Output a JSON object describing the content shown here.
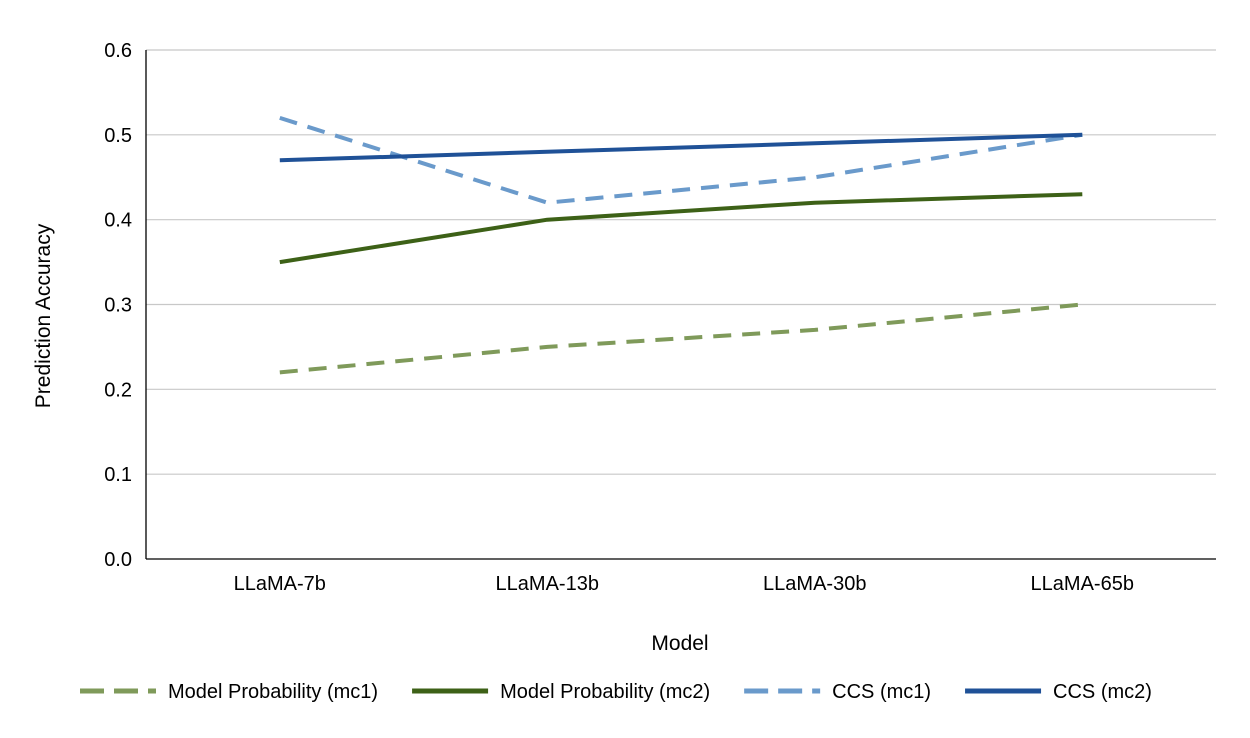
{
  "chart_data": {
    "type": "line",
    "title": "",
    "xlabel": "Model",
    "ylabel": "Prediction Accuracy",
    "categories": [
      "LLaMA-7b",
      "LLaMA-13b",
      "LLaMA-30b",
      "LLaMA-65b"
    ],
    "ylim": [
      0,
      0.6
    ],
    "yticks": [
      "0.0",
      "0.1",
      "0.2",
      "0.3",
      "0.4",
      "0.5",
      "0.6"
    ],
    "grid": true,
    "legend_position": "bottom",
    "series": [
      {
        "name": "Model Probability (mc1)",
        "values": [
          0.22,
          0.25,
          0.27,
          0.3
        ],
        "color": "#7f9a5a",
        "dashed": true
      },
      {
        "name": "Model Probability (mc2)",
        "values": [
          0.35,
          0.4,
          0.42,
          0.43
        ],
        "color": "#3d6117",
        "dashed": false
      },
      {
        "name": "CCS (mc1)",
        "values": [
          0.52,
          0.42,
          0.45,
          0.5
        ],
        "color": "#6a9acb",
        "dashed": true
      },
      {
        "name": "CCS (mc2)",
        "values": [
          0.47,
          0.48,
          0.49,
          0.5
        ],
        "color": "#1f5197",
        "dashed": false
      }
    ]
  }
}
